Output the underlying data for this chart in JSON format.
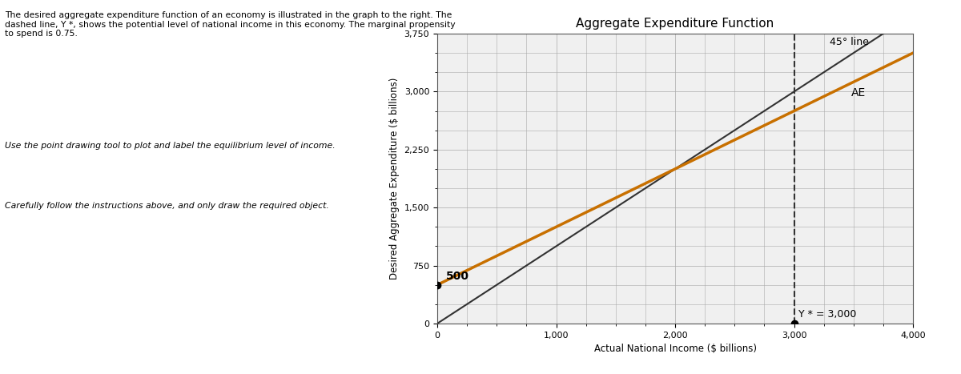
{
  "title": "Aggregate Expenditure Function",
  "xlabel": "Actual National Income ($ billions)",
  "ylabel": "Desired Aggregate Expenditure ($ billions)",
  "xlim": [
    0,
    4000
  ],
  "ylim": [
    0,
    3750
  ],
  "yticks": [
    0,
    750,
    1500,
    2250,
    3000,
    3750
  ],
  "ytick_labels": [
    "0",
    "750",
    "1,500",
    "2,250",
    "3,000",
    "3,750"
  ],
  "xticks": [
    0,
    1000,
    2000,
    3000,
    4000
  ],
  "xtick_labels": [
    "0",
    "1,000",
    "2,000",
    "3,000",
    "4,000"
  ],
  "ae_intercept": 500,
  "ae_slope": 0.75,
  "ae_color": "#c87000",
  "line45_color": "#333333",
  "ystar_x": 3000,
  "ystar_color": "#333333",
  "bg_color": "#ffffff",
  "grid_color": "#aaaaaa",
  "plot_bg_color": "#f0f0f0",
  "title_fontsize": 11,
  "label_fontsize": 8.5,
  "tick_fontsize": 8,
  "annotation_fontsize": 9,
  "left_text_lines": [
    "The desired aggregate expenditure function of an economy is illustrated in the graph to the right. The",
    "dashed line, Y *, shows the potential level of national income in this economy. The marginal propensity",
    "to spend is 0.75."
  ],
  "italic_text1": "Use the point drawing tool to plot and label the equilibrium level of income.",
  "italic_text2": "Carefully follow the instructions above, and only draw the required object."
}
